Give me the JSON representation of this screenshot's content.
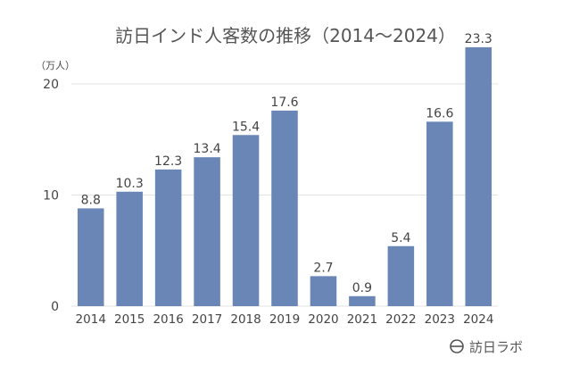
{
  "chart_data": {
    "type": "bar",
    "title": "訪日インド人客数の推移（2014〜2024）",
    "unit_label": "（万人）",
    "categories": [
      "2014",
      "2015",
      "2016",
      "2017",
      "2018",
      "2019",
      "2020",
      "2021",
      "2022",
      "2023",
      "2024"
    ],
    "values": [
      8.8,
      10.3,
      12.3,
      13.4,
      15.4,
      17.6,
      2.7,
      0.9,
      5.4,
      16.6,
      23.3
    ],
    "data_labels": [
      "8.8",
      "10.3",
      "12.3",
      "13.4",
      "15.4",
      "17.6",
      "2.7",
      "0.9",
      "5.4",
      "16.6",
      "23.3"
    ],
    "ylim": [
      0,
      23.3
    ],
    "yticks": [
      0,
      10,
      20
    ],
    "ytick_labels": [
      "0",
      "10",
      "20"
    ],
    "grid": true,
    "bar_color": "#6a86b6",
    "grid_color": "#e3e3e3"
  },
  "brand": {
    "icon": "flag-icon",
    "label": "訪日ラボ"
  }
}
